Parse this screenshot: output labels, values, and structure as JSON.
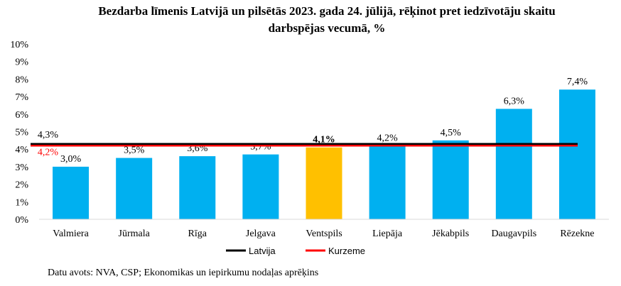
{
  "chart_data": {
    "type": "bar",
    "title": "Bezdarba līmenis Latvijā un pilsētās 2023. gada 24. jūlijā, rēķinot pret iedzīvotāju skaitu darbspējas vecumā, %",
    "title_lines": [
      "Bezdarba līmenis Latvijā un pilsētās 2023. gada 24. jūlijā, rēķinot pret iedzīvotāju skaitu",
      "darbspējas vecumā, %"
    ],
    "categories": [
      "Valmiera",
      "Jūrmala",
      "Rīga",
      "Jelgava",
      "Ventspils",
      "Liepāja",
      "Jēkabpils",
      "Daugavpils",
      "Rēzekne"
    ],
    "values": [
      3.0,
      3.5,
      3.6,
      3.7,
      4.1,
      4.2,
      4.5,
      6.3,
      7.4
    ],
    "value_labels": [
      "3,0%",
      "3,5%",
      "3,6%",
      "3,7%",
      "4,1%",
      "4,2%",
      "4,5%",
      "6,3%",
      "7,4%"
    ],
    "highlight_index": 4,
    "bar_color": "#00B0F0",
    "highlight_color": "#FFC000",
    "ylim": [
      0,
      10
    ],
    "yticks": [
      "0%",
      "1%",
      "2%",
      "3%",
      "4%",
      "5%",
      "6%",
      "7%",
      "8%",
      "9%",
      "10%"
    ],
    "grid": false,
    "reference_lines": [
      {
        "name": "Latvija",
        "value": 4.3,
        "label": "4,3%",
        "color": "#000000",
        "label_color": "#000000"
      },
      {
        "name": "Kurzeme",
        "value": 4.2,
        "label": "4,2%",
        "color": "#FF0000",
        "label_color": "#FF0000"
      }
    ],
    "legend_position": "bottom"
  },
  "source": "Datu avots: NVA, CSP; Ekonomikas un iepirkumu nodaļas aprēķins"
}
